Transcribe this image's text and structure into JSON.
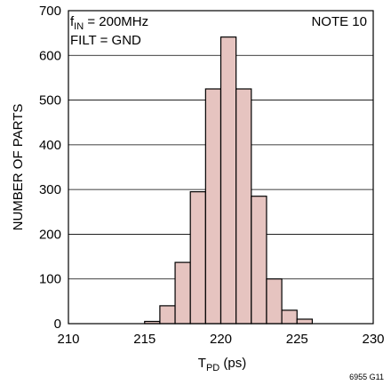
{
  "chart_data": {
    "type": "bar",
    "subtype": "histogram",
    "x": [
      215,
      216,
      217,
      218,
      219,
      220,
      221,
      222,
      223,
      224,
      225
    ],
    "values": [
      5,
      40,
      137,
      295,
      525,
      641,
      525,
      285,
      100,
      30,
      10
    ],
    "bin_width": 1,
    "xlim": [
      210,
      230
    ],
    "ylim": [
      0,
      700
    ],
    "x_ticks": [
      "210",
      "215",
      "220",
      "225",
      "230"
    ],
    "y_ticks": [
      "0",
      "100",
      "200",
      "300",
      "400",
      "500",
      "600",
      "700"
    ],
    "xlabel_main": "T",
    "xlabel_sub": "PD",
    "xlabel_unit": " (ps)",
    "ylabel": "NUMBER OF PARTS",
    "grid": "horizontal",
    "bar_fill": "#e6c4c0",
    "bar_stroke": "#000000",
    "annotations": {
      "condition1_main": "f",
      "condition1_sub": "IN",
      "condition1_rest": " = 200MHz",
      "condition2": "FILT = GND",
      "note": "NOTE 10"
    },
    "figure_code": "6955 G11"
  }
}
